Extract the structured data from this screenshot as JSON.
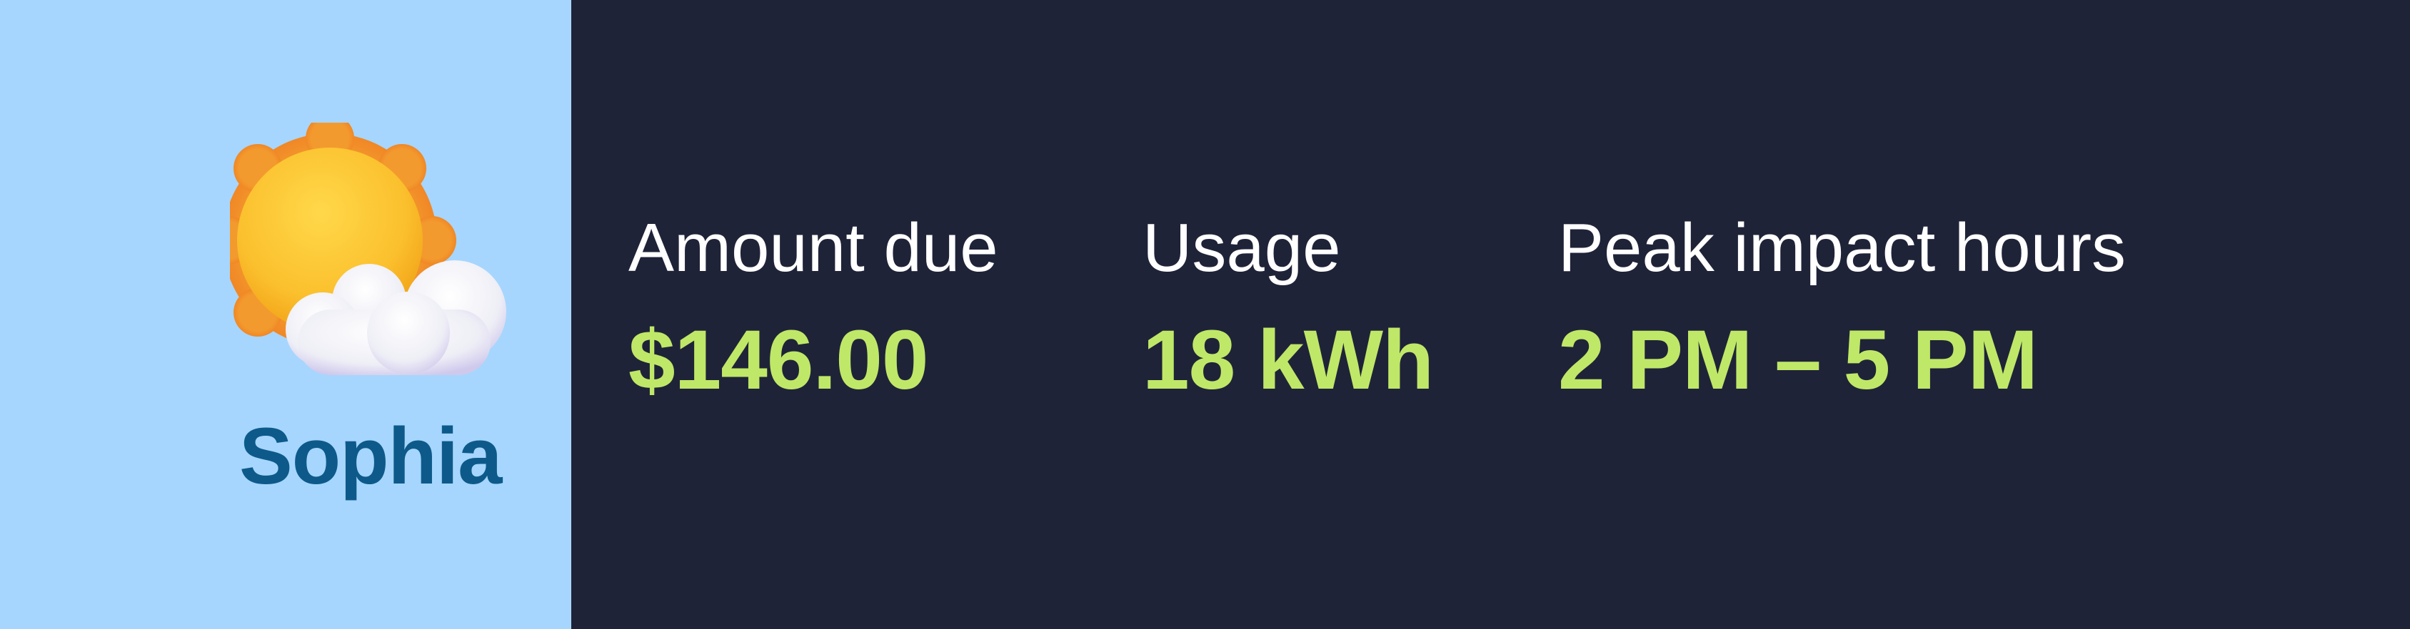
{
  "user": {
    "name": "Sophia",
    "weather_icon": "sun-behind-cloud-icon"
  },
  "stats": {
    "amount_due": {
      "label": "Amount due",
      "value": "$146.00"
    },
    "usage": {
      "label": "Usage",
      "value": "18 kWh"
    },
    "peak": {
      "label": "Peak impact hours",
      "value": "2 PM – 5 PM"
    }
  },
  "colors": {
    "left_background": "#a6d6fe",
    "right_background": "#1f2338",
    "name_color": "#0d5a8a",
    "label_color": "#ffffff",
    "value_color": "#bfe868"
  }
}
